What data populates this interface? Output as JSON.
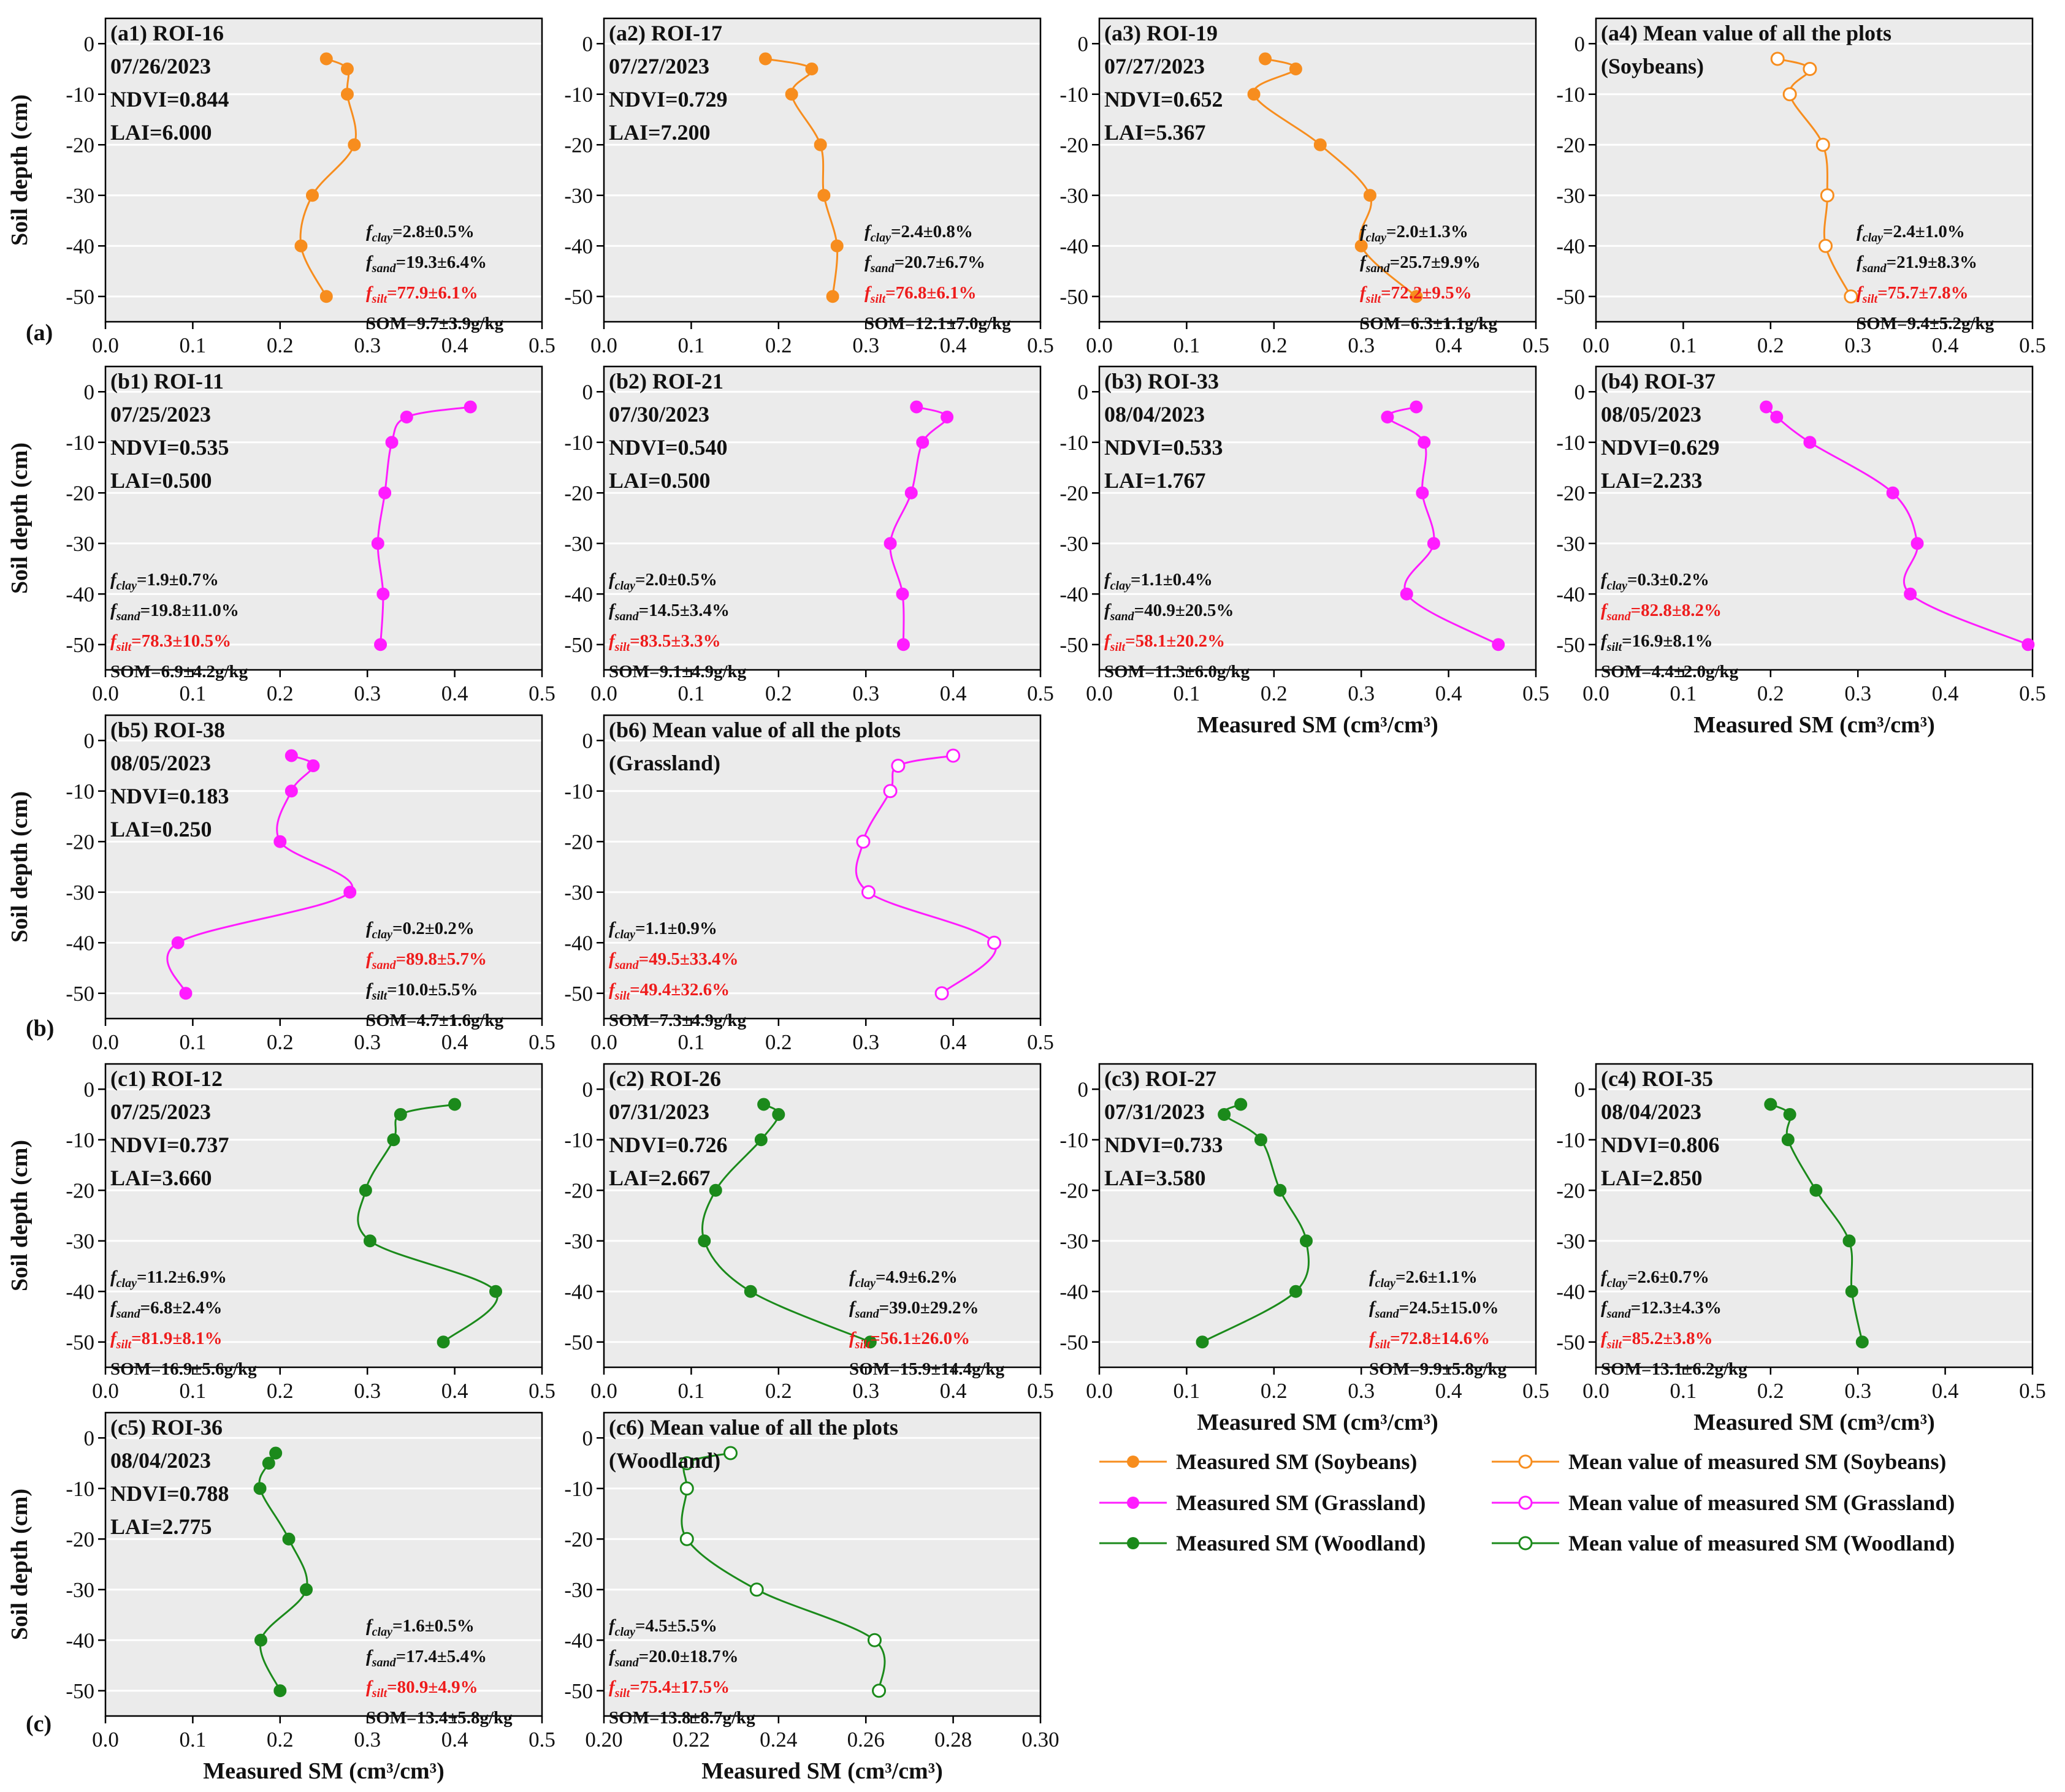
{
  "colors": {
    "soybeans": "#F78D1E",
    "grassland": "#FF1CFF",
    "woodland": "#1B8A1B",
    "panel_bg": "#EBEBEB",
    "grid": "#FFFFFF",
    "highlight": "#EE1C1C",
    "text": "#111111"
  },
  "y_axis_label": "Soil depth (cm)",
  "x_axis_label": "Measured  SM (cm³/cm³)",
  "row_letters": [
    "(a)",
    "(b)",
    "(c)"
  ],
  "legend": [
    {
      "label": "Measured SM (Soybeans)",
      "group": "soybeans",
      "marker": "filled"
    },
    {
      "label": "Mean value of measured SM (Soybeans)",
      "group": "soybeans",
      "marker": "open"
    },
    {
      "label": "Measured SM (Grassland)",
      "group": "grassland",
      "marker": "filled"
    },
    {
      "label": "Mean value of measured SM (Grassland)",
      "group": "grassland",
      "marker": "open"
    },
    {
      "label": "Measured SM (Woodland)",
      "group": "woodland",
      "marker": "filled"
    },
    {
      "label": "Mean value of measured SM (Woodland)",
      "group": "woodland",
      "marker": "open"
    }
  ],
  "chart_data": [
    {
      "id": "a1",
      "type": "line",
      "group": "soybeans",
      "marker": "filled",
      "title_lines": [
        "(a1) ROI-16",
        "07/26/2023",
        "NDVI=0.844",
        "LAI=6.000"
      ],
      "x": [
        0.253,
        0.277,
        0.277,
        0.285,
        0.237,
        0.224,
        0.253
      ],
      "y": [
        -3,
        -5,
        -10,
        -20,
        -30,
        -40,
        -50
      ],
      "xlim": [
        0,
        0.5
      ],
      "ylim": [
        -55,
        5
      ],
      "xticks": [
        "0.0",
        "0.1",
        "0.2",
        "0.3",
        "0.4",
        "0.5"
      ],
      "yticks": [
        "0",
        "-10",
        "-20",
        "-30",
        "-40",
        "-50"
      ],
      "show_xlabel": false,
      "soil": [
        {
          "var": "clay",
          "val": "=2.8±0.5%",
          "red": false
        },
        {
          "var": "sand",
          "val": "=19.3±6.4%",
          "red": false
        },
        {
          "var": "silt",
          "val": "=77.9±6.1%",
          "red": true
        }
      ],
      "som": "SOM=9.7±3.9g/kg"
    },
    {
      "id": "a2",
      "type": "line",
      "group": "soybeans",
      "marker": "filled",
      "title_lines": [
        "(a2) ROI-17",
        "07/27/2023",
        "NDVI=0.729",
        "LAI=7.200"
      ],
      "x": [
        0.185,
        0.238,
        0.215,
        0.248,
        0.252,
        0.267,
        0.262
      ],
      "y": [
        -3,
        -5,
        -10,
        -20,
        -30,
        -40,
        -50
      ],
      "xlim": [
        0,
        0.5
      ],
      "ylim": [
        -55,
        5
      ],
      "xticks": [
        "0.0",
        "0.1",
        "0.2",
        "0.3",
        "0.4",
        "0.5"
      ],
      "yticks": [
        "0",
        "-10",
        "-20",
        "-30",
        "-40",
        "-50"
      ],
      "show_xlabel": false,
      "soil": [
        {
          "var": "clay",
          "val": "=2.4±0.8%",
          "red": false
        },
        {
          "var": "sand",
          "val": "=20.7±6.7%",
          "red": false
        },
        {
          "var": "silt",
          "val": "=76.8±6.1%",
          "red": true
        }
      ],
      "som": "SOM=12.1±7.0g/kg"
    },
    {
      "id": "a3",
      "type": "line",
      "group": "soybeans",
      "marker": "filled",
      "title_lines": [
        "(a3) ROI-19",
        "07/27/2023",
        "NDVI=0.652",
        "LAI=5.367"
      ],
      "x": [
        0.19,
        0.225,
        0.177,
        0.253,
        0.31,
        0.3,
        0.363
      ],
      "y": [
        -3,
        -5,
        -10,
        -20,
        -30,
        -40,
        -50
      ],
      "xlim": [
        0,
        0.5
      ],
      "ylim": [
        -55,
        5
      ],
      "xticks": [
        "0.0",
        "0.1",
        "0.2",
        "0.3",
        "0.4",
        "0.5"
      ],
      "yticks": [
        "0",
        "-10",
        "-20",
        "-30",
        "-40",
        "-50"
      ],
      "show_xlabel": false,
      "soil": [
        {
          "var": "clay",
          "val": "=2.0±1.3%",
          "red": false
        },
        {
          "var": "sand",
          "val": "=25.7±9.9%",
          "red": false
        },
        {
          "var": "silt",
          "val": "=72.2±9.5%",
          "red": true
        }
      ],
      "som": "SOM=6.3±1.1g/kg"
    },
    {
      "id": "a4",
      "type": "line",
      "group": "soybeans",
      "marker": "open",
      "title_lines": [
        "(a4) Mean value of all the plots",
        "(Soybeans)"
      ],
      "x": [
        0.208,
        0.245,
        0.222,
        0.26,
        0.265,
        0.263,
        0.292
      ],
      "y": [
        -3,
        -5,
        -10,
        -20,
        -30,
        -40,
        -50
      ],
      "xlim": [
        0,
        0.5
      ],
      "ylim": [
        -55,
        5
      ],
      "xticks": [
        "0.0",
        "0.1",
        "0.2",
        "0.3",
        "0.4",
        "0.5"
      ],
      "yticks": [
        "0",
        "-10",
        "-20",
        "-30",
        "-40",
        "-50"
      ],
      "show_xlabel": false,
      "soil": [
        {
          "var": "clay",
          "val": "=2.4±1.0%",
          "red": false
        },
        {
          "var": "sand",
          "val": "=21.9±8.3%",
          "red": false
        },
        {
          "var": "silt",
          "val": "=75.7±7.8%",
          "red": true
        }
      ],
      "som": "SOM=9.4±5.2g/kg"
    },
    {
      "id": "b1",
      "type": "line",
      "group": "grassland",
      "marker": "filled",
      "title_lines": [
        "(b1) ROI-11",
        "07/25/2023",
        "NDVI=0.535",
        "LAI=0.500"
      ],
      "x": [
        0.418,
        0.345,
        0.328,
        0.32,
        0.312,
        0.318,
        0.315
      ],
      "y": [
        -3,
        -5,
        -10,
        -20,
        -30,
        -40,
        -50
      ],
      "xlim": [
        0,
        0.5
      ],
      "ylim": [
        -55,
        5
      ],
      "xticks": [
        "0.0",
        "0.1",
        "0.2",
        "0.3",
        "0.4",
        "0.5"
      ],
      "yticks": [
        "0",
        "-10",
        "-20",
        "-30",
        "-40",
        "-50"
      ],
      "show_xlabel": false,
      "soil": [
        {
          "var": "clay",
          "val": "=1.9±0.7%",
          "red": false
        },
        {
          "var": "sand",
          "val": "=19.8±11.0%",
          "red": false
        },
        {
          "var": "silt",
          "val": "=78.3±10.5%",
          "red": true
        }
      ],
      "som": "SOM=6.9±4.2g/kg"
    },
    {
      "id": "b2",
      "type": "line",
      "group": "grassland",
      "marker": "filled",
      "title_lines": [
        "(b2) ROI-21",
        "07/30/2023",
        "NDVI=0.540",
        "LAI=0.500"
      ],
      "x": [
        0.358,
        0.393,
        0.365,
        0.352,
        0.328,
        0.342,
        0.343
      ],
      "y": [
        -3,
        -5,
        -10,
        -20,
        -30,
        -40,
        -50
      ],
      "xlim": [
        0,
        0.5
      ],
      "ylim": [
        -55,
        5
      ],
      "xticks": [
        "0.0",
        "0.1",
        "0.2",
        "0.3",
        "0.4",
        "0.5"
      ],
      "yticks": [
        "0",
        "-10",
        "-20",
        "-30",
        "-40",
        "-50"
      ],
      "show_xlabel": false,
      "soil": [
        {
          "var": "clay",
          "val": "=2.0±0.5%",
          "red": false
        },
        {
          "var": "sand",
          "val": "=14.5±3.4%",
          "red": false
        },
        {
          "var": "silt",
          "val": "=83.5±3.3%",
          "red": true
        }
      ],
      "som": "SOM=9.1±4.9g/kg"
    },
    {
      "id": "b3",
      "type": "line",
      "group": "grassland",
      "marker": "filled",
      "title_lines": [
        "(b3) ROI-33",
        "08/04/2023",
        "NDVI=0.533",
        "LAI=1.767"
      ],
      "x": [
        0.363,
        0.33,
        0.372,
        0.37,
        0.383,
        0.352,
        0.457
      ],
      "y": [
        -3,
        -5,
        -10,
        -20,
        -30,
        -40,
        -50
      ],
      "xlim": [
        0,
        0.5
      ],
      "ylim": [
        -55,
        5
      ],
      "xticks": [
        "0.0",
        "0.1",
        "0.2",
        "0.3",
        "0.4",
        "0.5"
      ],
      "yticks": [
        "0",
        "-10",
        "-20",
        "-30",
        "-40",
        "-50"
      ],
      "show_xlabel": true,
      "soil": [
        {
          "var": "clay",
          "val": "=1.1±0.4%",
          "red": false
        },
        {
          "var": "sand",
          "val": "=40.9±20.5%",
          "red": false
        },
        {
          "var": "silt",
          "val": "=58.1±20.2%",
          "red": true
        }
      ],
      "som": "SOM=11.3±6.0g/kg"
    },
    {
      "id": "b4",
      "type": "line",
      "group": "grassland",
      "marker": "filled",
      "title_lines": [
        "(b4) ROI-37",
        "08/05/2023",
        "NDVI=0.629",
        "LAI=2.233"
      ],
      "x": [
        0.195,
        0.207,
        0.245,
        0.34,
        0.368,
        0.36,
        0.495
      ],
      "y": [
        -3,
        -5,
        -10,
        -20,
        -30,
        -40,
        -50
      ],
      "xlim": [
        0,
        0.5
      ],
      "ylim": [
        -55,
        5
      ],
      "xticks": [
        "0.0",
        "0.1",
        "0.2",
        "0.3",
        "0.4",
        "0.5"
      ],
      "yticks": [
        "0",
        "-10",
        "-20",
        "-30",
        "-40",
        "-50"
      ],
      "show_xlabel": true,
      "soil": [
        {
          "var": "clay",
          "val": "=0.3±0.2%",
          "red": false
        },
        {
          "var": "sand",
          "val": "=82.8±8.2%",
          "red": true
        },
        {
          "var": "silt",
          "val": "=16.9±8.1%",
          "red": false
        }
      ],
      "som": "SOM=4.4±2.0g/kg"
    },
    {
      "id": "b5",
      "type": "line",
      "group": "grassland",
      "marker": "filled",
      "title_lines": [
        "(b5) ROI-38",
        "08/05/2023",
        "NDVI=0.183",
        "LAI=0.250"
      ],
      "x": [
        0.213,
        0.238,
        0.213,
        0.2,
        0.28,
        0.083,
        0.092
      ],
      "y": [
        -3,
        -5,
        -10,
        -20,
        -30,
        -40,
        -50
      ],
      "xlim": [
        0,
        0.5
      ],
      "ylim": [
        -55,
        5
      ],
      "xticks": [
        "0.0",
        "0.1",
        "0.2",
        "0.3",
        "0.4",
        "0.5"
      ],
      "yticks": [
        "0",
        "-10",
        "-20",
        "-30",
        "-40",
        "-50"
      ],
      "show_xlabel": false,
      "soil": [
        {
          "var": "clay",
          "val": "=0.2±0.2%",
          "red": false
        },
        {
          "var": "sand",
          "val": "=89.8±5.7%",
          "red": true
        },
        {
          "var": "silt",
          "val": "=10.0±5.5%",
          "red": false
        }
      ],
      "som": "SOM=4.7±1.6g/kg"
    },
    {
      "id": "b6",
      "type": "line",
      "group": "grassland",
      "marker": "open",
      "title_lines": [
        "(b6) Mean value of all the plots",
        "(Grassland)"
      ],
      "x": [
        0.4,
        0.337,
        0.328,
        0.297,
        0.303,
        0.447,
        0.387
      ],
      "y": [
        -3,
        -5,
        -10,
        -20,
        -30,
        -40,
        -50
      ],
      "xlim": [
        0,
        0.5
      ],
      "ylim": [
        -55,
        5
      ],
      "xticks": [
        "0.0",
        "0.1",
        "0.2",
        "0.3",
        "0.4",
        "0.5"
      ],
      "yticks": [
        "0",
        "-10",
        "-20",
        "-30",
        "-40",
        "-50"
      ],
      "show_xlabel": false,
      "soil": [
        {
          "var": "clay",
          "val": "=1.1±0.9%",
          "red": false
        },
        {
          "var": "sand",
          "val": "=49.5±33.4%",
          "red": true
        },
        {
          "var": "silt",
          "val": "=49.4±32.6%",
          "red": true
        }
      ],
      "som": "SOM=7.3±4.9g/kg"
    },
    {
      "id": "c1",
      "type": "line",
      "group": "woodland",
      "marker": "filled",
      "title_lines": [
        "(c1) ROI-12",
        "07/25/2023",
        "NDVI=0.737",
        "LAI=3.660"
      ],
      "x": [
        0.4,
        0.338,
        0.33,
        0.298,
        0.303,
        0.447,
        0.387
      ],
      "y": [
        -3,
        -5,
        -10,
        -20,
        -30,
        -40,
        -50
      ],
      "xlim": [
        0,
        0.5
      ],
      "ylim": [
        -55,
        5
      ],
      "xticks": [
        "0.0",
        "0.1",
        "0.2",
        "0.3",
        "0.4",
        "0.5"
      ],
      "yticks": [
        "0",
        "-10",
        "-20",
        "-30",
        "-40",
        "-50"
      ],
      "show_xlabel": false,
      "soil": [
        {
          "var": "clay",
          "val": "=11.2±6.9%",
          "red": false
        },
        {
          "var": "sand",
          "val": "=6.8±2.4%",
          "red": false
        },
        {
          "var": "silt",
          "val": "=81.9±8.1%",
          "red": true
        }
      ],
      "som": "SOM=16.9±5.6g/kg"
    },
    {
      "id": "c2",
      "type": "line",
      "group": "woodland",
      "marker": "filled",
      "title_lines": [
        "(c2) ROI-26",
        "07/31/2023",
        "NDVI=0.726",
        "LAI=2.667"
      ],
      "x": [
        0.183,
        0.2,
        0.18,
        0.128,
        0.115,
        0.168,
        0.305
      ],
      "y": [
        -3,
        -5,
        -10,
        -20,
        -30,
        -40,
        -50
      ],
      "xlim": [
        0,
        0.5
      ],
      "ylim": [
        -55,
        5
      ],
      "xticks": [
        "0.0",
        "0.1",
        "0.2",
        "0.3",
        "0.4",
        "0.5"
      ],
      "yticks": [
        "0",
        "-10",
        "-20",
        "-30",
        "-40",
        "-50"
      ],
      "show_xlabel": false,
      "soil": [
        {
          "var": "clay",
          "val": "=4.9±6.2%",
          "red": false
        },
        {
          "var": "sand",
          "val": "=39.0±29.2%",
          "red": false
        },
        {
          "var": "silt",
          "val": "=56.1±26.0%",
          "red": true
        }
      ],
      "som": "SOM=15.9±14.4g/kg"
    },
    {
      "id": "c3",
      "type": "line",
      "group": "woodland",
      "marker": "filled",
      "title_lines": [
        "(c3) ROI-27",
        "07/31/2023",
        "NDVI=0.733",
        "LAI=3.580"
      ],
      "x": [
        0.162,
        0.143,
        0.185,
        0.207,
        0.237,
        0.225,
        0.118
      ],
      "y": [
        -3,
        -5,
        -10,
        -20,
        -30,
        -40,
        -50
      ],
      "xlim": [
        0,
        0.5
      ],
      "ylim": [
        -55,
        5
      ],
      "xticks": [
        "0.0",
        "0.1",
        "0.2",
        "0.3",
        "0.4",
        "0.5"
      ],
      "yticks": [
        "0",
        "-10",
        "-20",
        "-30",
        "-40",
        "-50"
      ],
      "show_xlabel": true,
      "soil": [
        {
          "var": "clay",
          "val": "=2.6±1.1%",
          "red": false
        },
        {
          "var": "sand",
          "val": "=24.5±15.0%",
          "red": false
        },
        {
          "var": "silt",
          "val": "=72.8±14.6%",
          "red": true
        }
      ],
      "som": "SOM=9.9±5.8g/kg"
    },
    {
      "id": "c4",
      "type": "line",
      "group": "woodland",
      "marker": "filled",
      "title_lines": [
        "(c4) ROI-35",
        "08/04/2023",
        "NDVI=0.806",
        "LAI=2.850"
      ],
      "x": [
        0.2,
        0.222,
        0.22,
        0.252,
        0.29,
        0.293,
        0.305
      ],
      "y": [
        -3,
        -5,
        -10,
        -20,
        -30,
        -40,
        -50
      ],
      "xlim": [
        0,
        0.5
      ],
      "ylim": [
        -55,
        5
      ],
      "xticks": [
        "0.0",
        "0.1",
        "0.2",
        "0.3",
        "0.4",
        "0.5"
      ],
      "yticks": [
        "0",
        "-10",
        "-20",
        "-30",
        "-40",
        "-50"
      ],
      "show_xlabel": true,
      "soil": [
        {
          "var": "clay",
          "val": "=2.6±0.7%",
          "red": false
        },
        {
          "var": "sand",
          "val": "=12.3±4.3%",
          "red": false
        },
        {
          "var": "silt",
          "val": "=85.2±3.8%",
          "red": true
        }
      ],
      "som": "SOM=13.1±6.2g/kg"
    },
    {
      "id": "c5",
      "type": "line",
      "group": "woodland",
      "marker": "filled",
      "title_lines": [
        "(c5) ROI-36",
        "08/04/2023",
        "NDVI=0.788",
        "LAI=2.775"
      ],
      "x": [
        0.195,
        0.187,
        0.177,
        0.21,
        0.23,
        0.178,
        0.2
      ],
      "y": [
        -3,
        -5,
        -10,
        -20,
        -30,
        -40,
        -50
      ],
      "xlim": [
        0,
        0.5
      ],
      "ylim": [
        -55,
        5
      ],
      "xticks": [
        "0.0",
        "0.1",
        "0.2",
        "0.3",
        "0.4",
        "0.5"
      ],
      "yticks": [
        "0",
        "-10",
        "-20",
        "-30",
        "-40",
        "-50"
      ],
      "show_xlabel": true,
      "soil": [
        {
          "var": "clay",
          "val": "=1.6±0.5%",
          "red": false
        },
        {
          "var": "sand",
          "val": "=17.4±5.4%",
          "red": false
        },
        {
          "var": "silt",
          "val": "=80.9±4.9%",
          "red": true
        }
      ],
      "som": "SOM=13.4±5.8g/kg"
    },
    {
      "id": "c6",
      "type": "line",
      "group": "woodland",
      "marker": "open",
      "title_lines": [
        "(c6) Mean value of all the plots",
        "(Woodland)"
      ],
      "x": [
        0.229,
        0.219,
        0.219,
        0.219,
        0.235,
        0.262,
        0.263
      ],
      "y": [
        -3,
        -5,
        -10,
        -20,
        -30,
        -40,
        -50
      ],
      "xlim": [
        0.2,
        0.3
      ],
      "ylim": [
        -55,
        5
      ],
      "xticks": [
        "0.20",
        "0.22",
        "0.24",
        "0.26",
        "0.28",
        "0.30"
      ],
      "yticks": [
        "0",
        "-10",
        "-20",
        "-30",
        "-40",
        "-50"
      ],
      "show_xlabel": true,
      "soil": [
        {
          "var": "clay",
          "val": "=4.5±5.5%",
          "red": false
        },
        {
          "var": "sand",
          "val": "=20.0±18.7%",
          "red": false
        },
        {
          "var": "silt",
          "val": "=75.4±17.5%",
          "red": true
        }
      ],
      "som": "SOM=13.8±8.7g/kg"
    }
  ]
}
